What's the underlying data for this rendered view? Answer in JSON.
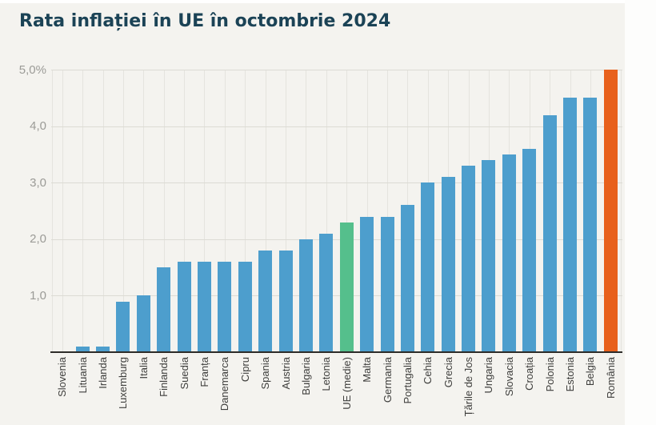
{
  "chart_data": {
    "type": "bar",
    "title": "Rata inflației în UE în octombrie 2024",
    "categories": [
      "Slovenia",
      "Lituania",
      "Irlanda",
      "Luxemburg",
      "Italia",
      "Finlanda",
      "Suedia",
      "Franța",
      "Danemarca",
      "Cipru",
      "Spania",
      "Austria",
      "Bulgaria",
      "Letonia",
      "UE (medie)",
      "Malta",
      "Germania",
      "Portugalia",
      "Cehia",
      "Grecia",
      "Țările de Jos",
      "Ungaria",
      "Slovacia",
      "Croația",
      "Polonia",
      "Estonia",
      "Belgia",
      "România"
    ],
    "values": [
      0.0,
      0.1,
      0.1,
      0.9,
      1.0,
      1.5,
      1.6,
      1.6,
      1.6,
      1.6,
      1.8,
      1.8,
      2.0,
      2.1,
      2.3,
      2.4,
      2.4,
      2.6,
      3.0,
      3.1,
      3.3,
      3.4,
      3.5,
      3.6,
      4.2,
      4.5,
      4.5,
      5.0
    ],
    "unit": "%",
    "bar_color": "#4d9ecd",
    "highlights": {
      "UE (medie)": "#55bf8c",
      "România": "#e8611c"
    },
    "ylim": [
      0,
      5
    ],
    "yticks": [
      {
        "value": 1,
        "label": "1,0"
      },
      {
        "value": 2,
        "label": "2,0"
      },
      {
        "value": 3,
        "label": "3,0"
      },
      {
        "value": 4,
        "label": "4,0"
      },
      {
        "value": 5,
        "label": "5,0%"
      }
    ],
    "grid": true,
    "legend": false,
    "xlabel": "",
    "ylabel": ""
  },
  "colors": {
    "background": "#f4f3ef",
    "title": "#1b4356",
    "axis_line": "#2d2c29",
    "grid_horizontal": "#dcdbd4",
    "grid_vertical": "#e5e4de",
    "y_tick_label": "#9b9b97",
    "x_tick_label": "#3e3e3c"
  }
}
